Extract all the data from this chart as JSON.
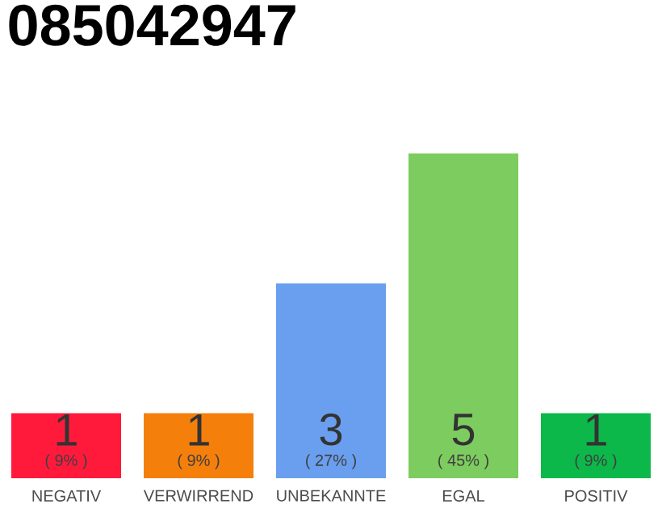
{
  "chart_data": {
    "type": "bar",
    "title": "085042947",
    "categories": [
      "NEGATIV",
      "VERWIRREND",
      "UNBEKANNTE",
      "EGAL",
      "POSITIV"
    ],
    "values": [
      9,
      9,
      27,
      45,
      9
    ],
    "colors": [
      "#ff1a3c",
      "#f57f0b",
      "#6a9ff0",
      "#7ccc5f",
      "#0cb84a"
    ],
    "value_labels": [
      "( 9% )",
      "( 9% )",
      "( 27% )",
      "( 45% )",
      "( 9% )"
    ],
    "annotations": [
      "1",
      "1",
      "3",
      "5",
      "1"
    ]
  }
}
